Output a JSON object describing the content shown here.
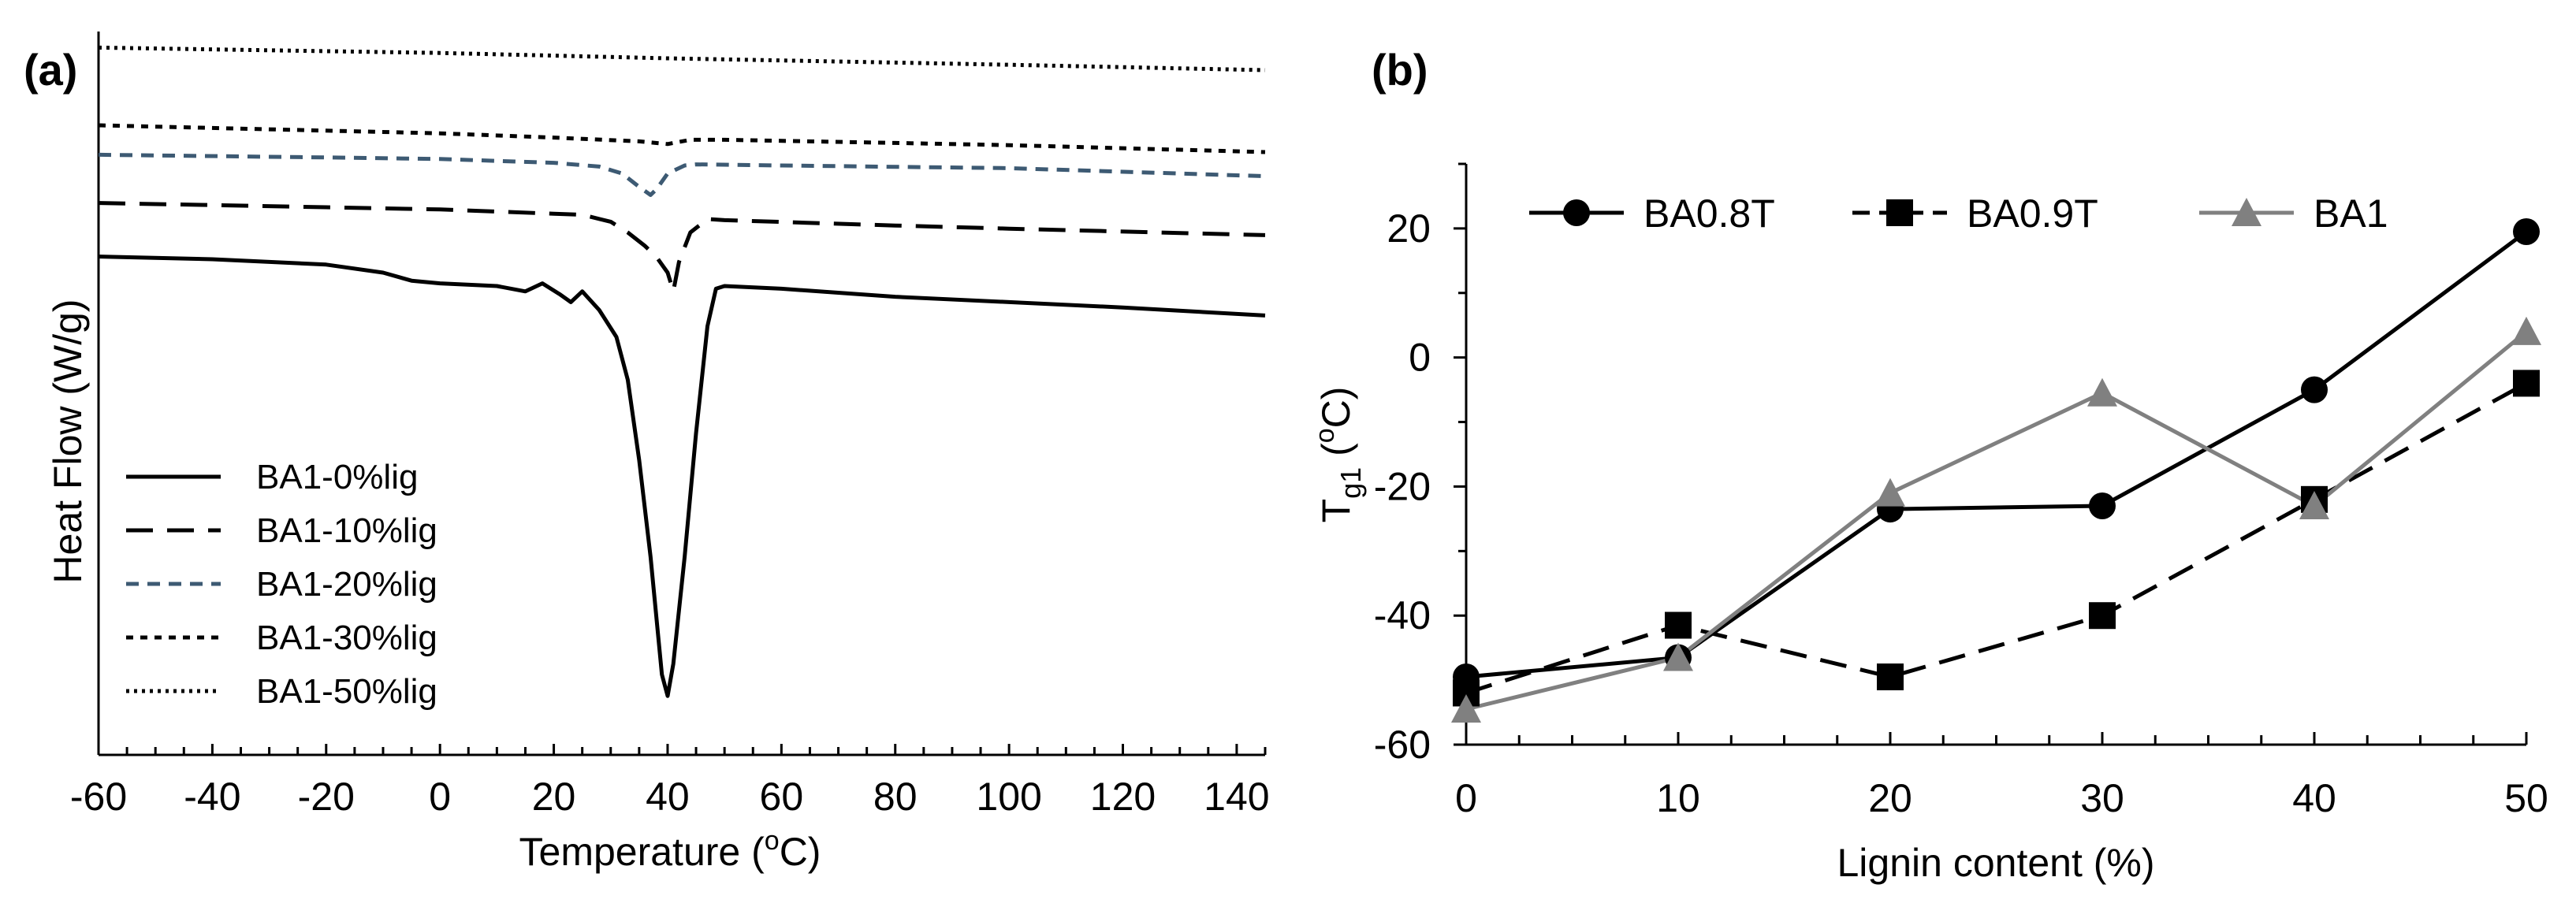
{
  "chart_data": [
    {
      "panel_label": "(a)",
      "type": "line",
      "title": "",
      "xlabel": "Temperature",
      "xlabel_unit_prefix": "(",
      "xlabel_unit_sup": "o",
      "xlabel_unit_suffix": "C)",
      "ylabel": "Heat Flow (W/g)",
      "xlim": [
        -60,
        145
      ],
      "x_ticks": [
        -60,
        -40,
        -20,
        0,
        20,
        40,
        60,
        80,
        100,
        120,
        140
      ],
      "legend_position": "lower-left",
      "series": [
        {
          "name": "BA1-0%lig",
          "style": "solid",
          "color": "#000000",
          "points": [
            [
              -60,
              10.8
            ],
            [
              -40,
              10.75
            ],
            [
              -20,
              10.65
            ],
            [
              -10,
              10.5
            ],
            [
              -5,
              10.35
            ],
            [
              0,
              10.3
            ],
            [
              10,
              10.25
            ],
            [
              15,
              10.15
            ],
            [
              18,
              10.3
            ],
            [
              21,
              10.1
            ],
            [
              23,
              9.95
            ],
            [
              25,
              10.15
            ],
            [
              28,
              9.8
            ],
            [
              31,
              9.3
            ],
            [
              33,
              8.5
            ],
            [
              35,
              7.0
            ],
            [
              37,
              5.2
            ],
            [
              39,
              3.0
            ],
            [
              40,
              2.6
            ],
            [
              41,
              3.2
            ],
            [
              43,
              5.2
            ],
            [
              45,
              7.5
            ],
            [
              47,
              9.5
            ],
            [
              48.5,
              10.2
            ],
            [
              50,
              10.25
            ],
            [
              60,
              10.2
            ],
            [
              80,
              10.05
            ],
            [
              100,
              9.95
            ],
            [
              120,
              9.85
            ],
            [
              145,
              9.7
            ]
          ]
        },
        {
          "name": "BA1-10%lig",
          "style": "dashed",
          "color": "#000000",
          "points": [
            [
              -60,
              11.8
            ],
            [
              -20,
              11.72
            ],
            [
              0,
              11.68
            ],
            [
              20,
              11.6
            ],
            [
              25,
              11.58
            ],
            [
              30,
              11.45
            ],
            [
              33,
              11.25
            ],
            [
              36,
              11.0
            ],
            [
              38,
              10.8
            ],
            [
              40,
              10.5
            ],
            [
              41,
              10.15
            ],
            [
              42,
              10.7
            ],
            [
              44,
              11.25
            ],
            [
              47,
              11.5
            ],
            [
              50,
              11.48
            ],
            [
              80,
              11.38
            ],
            [
              100,
              11.32
            ],
            [
              145,
              11.2
            ]
          ]
        },
        {
          "name": "BA1-20%lig",
          "style": "short-dashed",
          "color": "#3d5a73",
          "points": [
            [
              -60,
              12.7
            ],
            [
              -20,
              12.65
            ],
            [
              0,
              12.62
            ],
            [
              20,
              12.55
            ],
            [
              28,
              12.48
            ],
            [
              32,
              12.35
            ],
            [
              35,
              12.1
            ],
            [
              37,
              11.95
            ],
            [
              38,
              12.05
            ],
            [
              40,
              12.35
            ],
            [
              43,
              12.5
            ],
            [
              45,
              12.52
            ],
            [
              60,
              12.5
            ],
            [
              100,
              12.45
            ],
            [
              145,
              12.3
            ]
          ]
        },
        {
          "name": "BA1-30%lig",
          "style": "dotted-dash",
          "color": "#000000",
          "points": [
            [
              -60,
              13.25
            ],
            [
              -20,
              13.15
            ],
            [
              0,
              13.1
            ],
            [
              20,
              13.02
            ],
            [
              35,
              12.95
            ],
            [
              40,
              12.9
            ],
            [
              44,
              12.98
            ],
            [
              50,
              12.98
            ],
            [
              80,
              12.92
            ],
            [
              100,
              12.88
            ],
            [
              145,
              12.75
            ]
          ]
        },
        {
          "name": "BA1-50%lig",
          "style": "dotted",
          "color": "#000000",
          "points": [
            [
              -60,
              14.7
            ],
            [
              0,
              14.6
            ],
            [
              40,
              14.5
            ],
            [
              80,
              14.42
            ],
            [
              100,
              14.38
            ],
            [
              145,
              14.28
            ]
          ]
        }
      ]
    },
    {
      "panel_label": "(b)",
      "type": "line",
      "title": "",
      "xlabel": "Lignin content (%)",
      "ylabel_main": "T",
      "ylabel_sub": "g1",
      "ylabel_unit_prefix": " (",
      "ylabel_unit_sup": "o",
      "ylabel_unit_suffix": "C)",
      "x": [
        0,
        10,
        20,
        30,
        40,
        50
      ],
      "xlim": [
        0,
        50
      ],
      "ylim": [
        -60,
        30
      ],
      "y_ticks": [
        -60,
        -40,
        -20,
        0,
        20
      ],
      "legend_position": "top",
      "series": [
        {
          "name": "BA0.8T",
          "marker": "circle",
          "style": "solid",
          "color": "#000000",
          "values": [
            -49.5,
            -46.5,
            -23.5,
            -23,
            -5,
            19.5
          ]
        },
        {
          "name": "BA0.9T",
          "marker": "square",
          "style": "dashed",
          "color": "#000000",
          "values": [
            -52,
            -41.5,
            -49.5,
            -40,
            -22,
            -4
          ]
        },
        {
          "name": "BA1",
          "marker": "triangle",
          "style": "solid",
          "color": "#808080",
          "values": [
            -54.5,
            -46.5,
            -21,
            -5.5,
            -23,
            4
          ]
        }
      ]
    }
  ]
}
